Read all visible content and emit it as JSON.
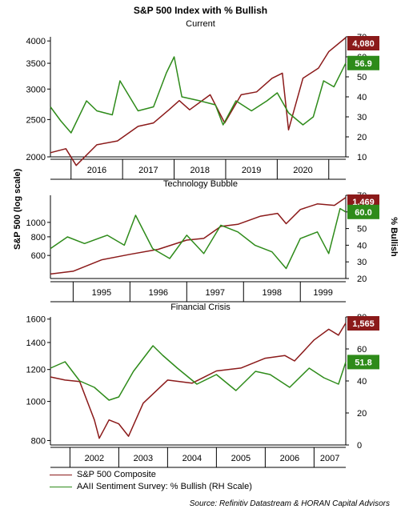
{
  "header": {
    "title": "S&P 500 Index with % Bullish",
    "subtitle": "Current"
  },
  "axes": {
    "left_label": "S&P 500 (log scale)",
    "right_label": "% Bullish"
  },
  "legend": [
    {
      "name": "S&P 500 Composite",
      "color": "#8b1a1a"
    },
    {
      "name": "AAII Sentiment Survey: % Bullish (RH Scale)",
      "color": "#2e8b1a"
    }
  ],
  "source": "Source: Refinitiv Datastream & HORAN Capital Advisors",
  "chart_data": [
    {
      "type": "line",
      "title": "",
      "y_scale": "log",
      "ylim": [
        2000,
        4100
      ],
      "y_ticks": [
        2000,
        2500,
        3000,
        3500,
        4000
      ],
      "y2lim": [
        10,
        70
      ],
      "y2_ticks": [
        10,
        20,
        30,
        40,
        50,
        60,
        70
      ],
      "x_ticks": [
        "2016",
        "2017",
        "2018",
        "2019",
        "2020"
      ],
      "x_range": [
        2015.6,
        2021.33
      ],
      "series": [
        {
          "name": "S&P 500 Composite",
          "axis": "left",
          "color": "#8b1a1a",
          "x": [
            2015.6,
            2015.9,
            2016.1,
            2016.5,
            2016.9,
            2017.3,
            2017.6,
            2017.9,
            2018.1,
            2018.3,
            2018.7,
            2018.98,
            2019.3,
            2019.6,
            2019.9,
            2020.1,
            2020.22,
            2020.5,
            2020.8,
            2021.0,
            2021.33
          ],
          "y": [
            2050,
            2100,
            1900,
            2150,
            2200,
            2400,
            2450,
            2650,
            2800,
            2650,
            2900,
            2450,
            2900,
            2950,
            3200,
            3300,
            2350,
            3200,
            3400,
            3750,
            4080
          ]
        },
        {
          "name": "AAII Sentiment Survey: % Bullish",
          "axis": "right",
          "color": "#2e8b1a",
          "x": [
            2015.6,
            2015.8,
            2016.0,
            2016.3,
            2016.5,
            2016.8,
            2016.95,
            2017.3,
            2017.6,
            2017.85,
            2018.0,
            2018.15,
            2018.5,
            2018.8,
            2018.95,
            2019.2,
            2019.5,
            2019.8,
            2020.0,
            2020.22,
            2020.5,
            2020.7,
            2020.9,
            2021.1,
            2021.33
          ],
          "y": [
            35,
            28,
            22,
            38,
            33,
            31,
            48,
            33,
            35,
            52,
            60,
            40,
            38,
            36,
            26,
            38,
            33,
            38,
            42,
            32,
            26,
            30,
            48,
            45,
            56.9
          ]
        }
      ],
      "badges": [
        {
          "label": "4,080",
          "series": "S&P 500 Composite"
        },
        {
          "label": "56.9",
          "series": "AAII Sentiment Survey: % Bullish"
        }
      ]
    },
    {
      "type": "line",
      "title": "Technology Bubble",
      "y_scale": "log",
      "ylim": [
        420,
        1520
      ],
      "y_ticks": [
        600,
        800,
        1000
      ],
      "y2lim": [
        20,
        70
      ],
      "y2_ticks": [
        20,
        30,
        40,
        50,
        60,
        70
      ],
      "x_ticks": [
        "1995",
        "1996",
        "1997",
        "1998",
        "1999"
      ],
      "x_range": [
        1994.6,
        1999.8
      ],
      "series": [
        {
          "name": "S&P 500 Composite",
          "axis": "left",
          "color": "#8b1a1a",
          "x": [
            1994.6,
            1995.0,
            1995.5,
            1996.0,
            1996.5,
            1997.0,
            1997.3,
            1997.6,
            1997.9,
            1998.3,
            1998.6,
            1998.75,
            1999.0,
            1999.3,
            1999.6,
            1999.8
          ],
          "y": [
            450,
            470,
            560,
            610,
            660,
            760,
            780,
            940,
            970,
            1100,
            1150,
            980,
            1220,
            1330,
            1300,
            1469
          ]
        },
        {
          "name": "AAII Sentiment Survey: % Bullish",
          "axis": "right",
          "color": "#2e8b1a",
          "x": [
            1994.6,
            1994.9,
            1995.2,
            1995.6,
            1995.9,
            1996.1,
            1996.4,
            1996.7,
            1997.0,
            1997.3,
            1997.6,
            1997.9,
            1998.2,
            1998.5,
            1998.75,
            1999.0,
            1999.3,
            1999.5,
            1999.7,
            1999.8
          ],
          "y": [
            38,
            45,
            41,
            46,
            40,
            58,
            38,
            32,
            46,
            35,
            52,
            48,
            40,
            36,
            26,
            44,
            48,
            35,
            62,
            60.0
          ]
        }
      ],
      "badges": [
        {
          "label": "1,469",
          "series": "S&P 500 Composite"
        },
        {
          "label": "60.0",
          "series": "AAII Sentiment Survey: % Bullish"
        }
      ]
    },
    {
      "type": "line",
      "title": "Financial Crisis",
      "y_scale": "log",
      "ylim": [
        780,
        1620
      ],
      "y_ticks": [
        800,
        1000,
        1200,
        1400,
        1600
      ],
      "y2lim": [
        0,
        80
      ],
      "y2_ticks": [
        0,
        20,
        40,
        60,
        80
      ],
      "x_ticks": [
        "2002",
        "2003",
        "2004",
        "2005",
        "2006",
        "2007"
      ],
      "x_range": [
        2001.6,
        2007.65
      ],
      "series": [
        {
          "name": "S&P 500 Composite",
          "axis": "left",
          "color": "#8b1a1a",
          "x": [
            2001.6,
            2001.9,
            2002.2,
            2002.5,
            2002.6,
            2002.8,
            2003.0,
            2003.2,
            2003.5,
            2004.0,
            2004.5,
            2005.0,
            2005.5,
            2006.0,
            2006.4,
            2006.6,
            2007.0,
            2007.3,
            2007.5,
            2007.65
          ],
          "y": [
            1150,
            1130,
            1120,
            900,
            810,
            900,
            880,
            820,
            990,
            1130,
            1110,
            1190,
            1210,
            1280,
            1300,
            1260,
            1420,
            1510,
            1460,
            1565
          ]
        },
        {
          "name": "AAII Sentiment Survey: % Bullish",
          "axis": "right",
          "color": "#2e8b1a",
          "x": [
            2001.6,
            2001.9,
            2002.2,
            2002.5,
            2002.8,
            2003.0,
            2003.3,
            2003.7,
            2003.9,
            2004.2,
            2004.6,
            2005.0,
            2005.4,
            2005.8,
            2006.1,
            2006.5,
            2006.9,
            2007.2,
            2007.5,
            2007.65
          ],
          "y": [
            48,
            52,
            40,
            36,
            28,
            30,
            46,
            62,
            56,
            48,
            38,
            44,
            34,
            46,
            44,
            36,
            48,
            42,
            38,
            51.8
          ]
        }
      ],
      "badges": [
        {
          "label": "1,565",
          "series": "S&P 500 Composite"
        },
        {
          "label": "51.8",
          "series": "AAII Sentiment Survey: % Bullish"
        }
      ]
    }
  ]
}
